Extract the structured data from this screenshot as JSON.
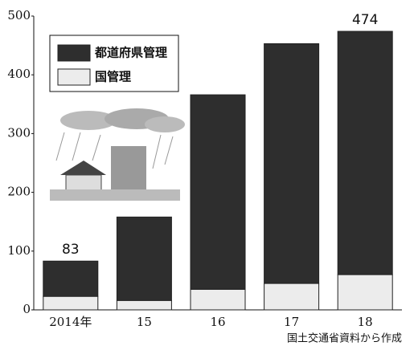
{
  "chart_data": {
    "type": "stacked_bar",
    "categories": [
      "2014年",
      "15",
      "16",
      "17",
      "18"
    ],
    "series": [
      {
        "name": "国管理",
        "color": "#ececec",
        "values": [
          23,
          16,
          35,
          45,
          60
        ]
      },
      {
        "name": "都道府県管理",
        "color": "#2e2e2e",
        "values": [
          60,
          142,
          331,
          408,
          414
        ]
      }
    ],
    "total_labels": [
      "83",
      null,
      null,
      null,
      "474"
    ],
    "ylim": [
      0,
      500
    ],
    "yticks": [
      0,
      100,
      200,
      300,
      400,
      500
    ],
    "source": "国土交通省資料から作成"
  }
}
